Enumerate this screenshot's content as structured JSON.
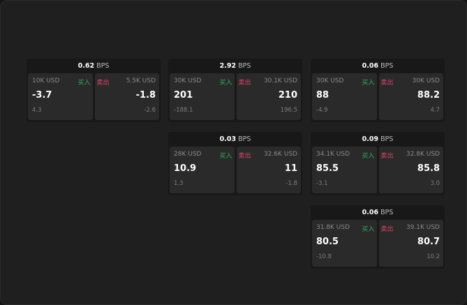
{
  "colors": {
    "buy": "#2fae5e",
    "sell": "#e0456b",
    "card_bg": "#2a2a2a",
    "header_bg": "#181818"
  },
  "unit": "BPS",
  "buy_label": "买入",
  "sell_label": "卖出",
  "cards": [
    {
      "spread": "0.62",
      "buy": {
        "amount": "10K USD",
        "price": "-3.7",
        "change": "4.3"
      },
      "sell": {
        "amount": "5.5K USD",
        "price": "-1.8",
        "change": "-2.6"
      }
    },
    {
      "spread": "2.92",
      "buy": {
        "amount": "30K USD",
        "price": "201",
        "change": "-188.1"
      },
      "sell": {
        "amount": "30.1K USD",
        "price": "210",
        "change": "196.5"
      }
    },
    {
      "spread": "0.06",
      "buy": {
        "amount": "30K USD",
        "price": "88",
        "change": "-4.9"
      },
      "sell": {
        "amount": "30K USD",
        "price": "88.2",
        "change": "4.7"
      }
    },
    {
      "spread": "0.03",
      "buy": {
        "amount": "28K USD",
        "price": "10.9",
        "change": "1.3"
      },
      "sell": {
        "amount": "32.6K USD",
        "price": "11",
        "change": "-1.8"
      }
    },
    {
      "spread": "0.09",
      "buy": {
        "amount": "34.1K USD",
        "price": "85.5",
        "change": "-3.1"
      },
      "sell": {
        "amount": "32.8K USD",
        "price": "85.8",
        "change": "3.0"
      }
    },
    {
      "spread": "0.06",
      "buy": {
        "amount": "31.8K USD",
        "price": "80.5",
        "change": "-10.8"
      },
      "sell": {
        "amount": "39.1K USD",
        "price": "80.7",
        "change": "10.2"
      }
    }
  ]
}
